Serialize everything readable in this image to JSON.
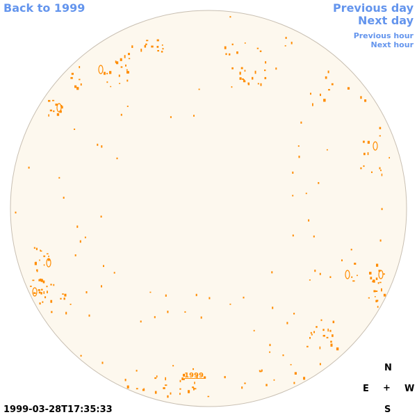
{
  "nav": {
    "back": "Back to 1999",
    "previous_day": "Previous day",
    "next_day": "Next day",
    "previous_hour": "Previous hour",
    "next_hour": "Next hour"
  },
  "disk": {
    "center_label": "1999",
    "fill_color": "#fdf8ee",
    "border_color": "#c8bfb2",
    "feature_color": "#ff8c00"
  },
  "timestamp": "1999-03-28T17:35:33",
  "compass": {
    "north": "N",
    "east": "E",
    "center": "+",
    "west": "W",
    "south": "S"
  }
}
